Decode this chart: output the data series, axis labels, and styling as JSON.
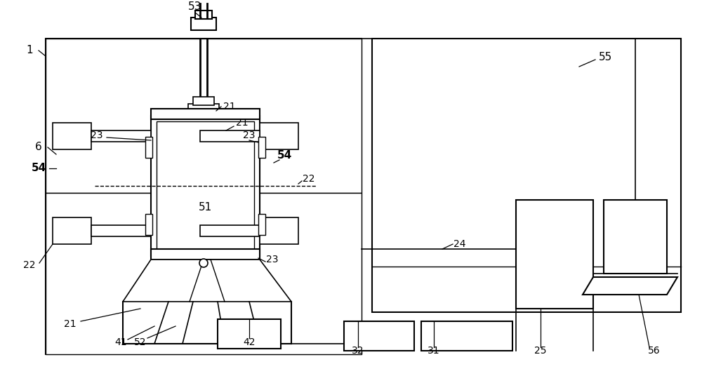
{
  "bg_color": "#ffffff",
  "line_color": "#000000",
  "fig_width": 10.0,
  "fig_height": 5.46,
  "dpi": 100
}
